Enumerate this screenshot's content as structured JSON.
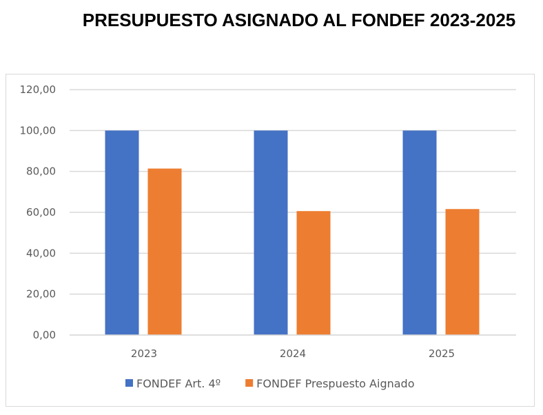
{
  "chart_data": {
    "type": "bar",
    "title": "PRESUPUESTO ASIGNADO AL FONDEF 2023-2025",
    "categories": [
      "2023",
      "2024",
      "2025"
    ],
    "series": [
      {
        "name": "FONDEF Art. 4º",
        "values": [
          100,
          100,
          100
        ],
        "color": "#4472C4"
      },
      {
        "name": "FONDEF Prespuesto Aignado",
        "values": [
          81.4,
          60.6,
          61.6
        ],
        "color": "#ED7D31"
      }
    ],
    "yticks": [
      "0,00",
      "20,00",
      "40,00",
      "60,00",
      "80,00",
      "100,00",
      "120,00"
    ],
    "ylim": [
      0,
      120
    ],
    "grid": true,
    "legend": "bottom"
  }
}
